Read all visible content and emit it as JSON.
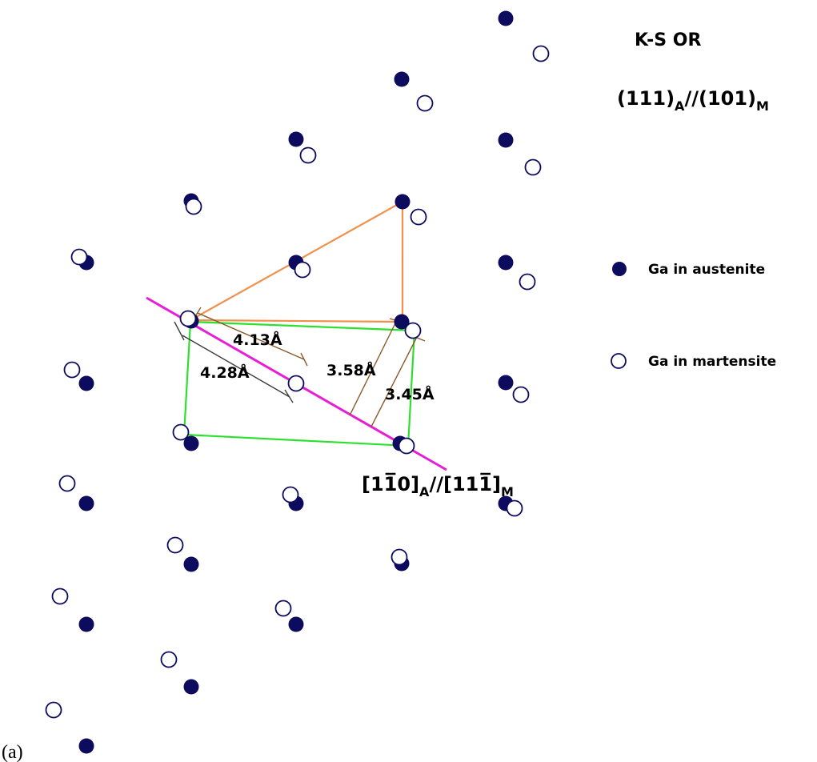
{
  "title": "K-S OR",
  "plane_relation": {
    "A_plane": "(111)",
    "A_sub": "A",
    "sep": "//",
    "M_plane": "(101)",
    "M_sub": "M"
  },
  "direction_relation": {
    "A_part1": "[1",
    "A_bar": "1",
    "A_part2": "0]",
    "A_sub": "A",
    "sep": "//",
    "M_part1": "[11",
    "M_bar": "1",
    "M_part2": "]",
    "M_sub": "M"
  },
  "measurements": [
    "4.13Å",
    "4.28Å",
    "3.58Å",
    "3.45Å"
  ],
  "legend": [
    {
      "label": "Ga in austenite",
      "marker": "filled-circle",
      "color": "#0d0b5e"
    },
    {
      "label": "Ga in martensite",
      "marker": "open-circle",
      "color": "#0d0b5e"
    }
  ],
  "panel_label": "(a)",
  "colors": {
    "atom": "#0d0b5e",
    "orange_triangle": "#f0904a",
    "green_cell": "#2ee02e",
    "direction_line": "#e81ed6",
    "dim_brown": "#8a5a2b",
    "dim_dark": "#3c3c3c"
  }
}
